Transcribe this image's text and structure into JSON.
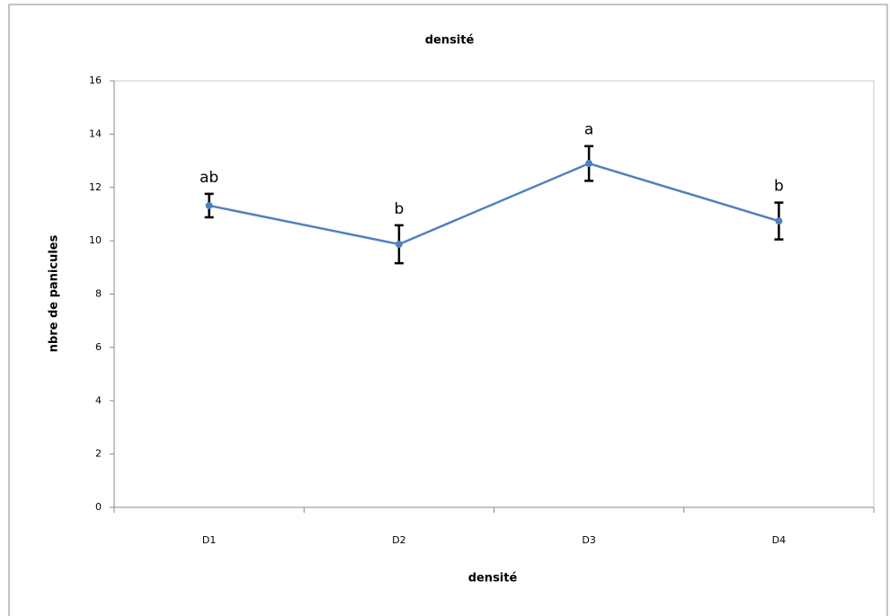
{
  "chart_data": {
    "type": "line",
    "title": "densité",
    "x_label": "densité",
    "y_label": "nbre de panicules",
    "categories": [
      "D1",
      "D2",
      "D3",
      "D4"
    ],
    "values": [
      11.32,
      9.87,
      12.9,
      10.74
    ],
    "errors": [
      0.44,
      0.71,
      0.65,
      0.69
    ],
    "point_labels": [
      "ab",
      "b",
      "a",
      "b"
    ],
    "color": "#4f81bd",
    "ylim": [
      0,
      16
    ],
    "yticks": [
      0,
      2,
      4,
      6,
      8,
      10,
      12,
      14,
      16
    ],
    "grid": false
  }
}
